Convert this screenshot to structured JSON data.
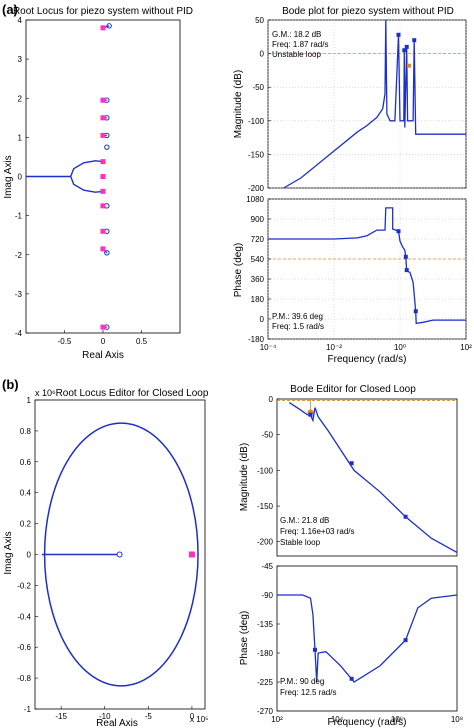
{
  "panel_labels": [
    "(a)",
    "(b)"
  ],
  "colors": {
    "locus": "#1d2fc9",
    "pole_marker": "#ff2fc0",
    "orange": "#e08a10",
    "grid": "#b8b8b8"
  },
  "chart_data": [
    {
      "id": "rl_a",
      "type": "scatter",
      "title": "Root Locus for piezo system without PID",
      "xlabel": "Real Axis",
      "ylabel": "Imag Axis",
      "xlim": [
        -1,
        1
      ],
      "ylim": [
        -4,
        4
      ],
      "xticks": [
        "-0.5",
        "0",
        "0.5"
      ],
      "yticks": [
        "-4",
        "-3",
        "-2",
        "-1",
        "0",
        "1",
        "2",
        "3",
        "4"
      ],
      "poles_y": [
        3.8,
        1.95,
        1.5,
        1.05,
        0.38,
        0,
        -0.38,
        -0.75,
        -1.4,
        -1.85,
        -3.85
      ],
      "zeros": [
        [
          0.08,
          3.85
        ],
        [
          0.05,
          1.95
        ],
        [
          0.05,
          1.5
        ],
        [
          0.05,
          1.05
        ],
        [
          0.05,
          0.75
        ],
        [
          0.05,
          -0.75
        ],
        [
          0.05,
          -1.4
        ],
        [
          0.05,
          -1.95
        ],
        [
          0.05,
          -3.85
        ]
      ],
      "branches": [
        {
          "name": "real-axis branch",
          "points": [
            [
              -1,
              0
            ],
            [
              -0.42,
              0
            ]
          ]
        },
        {
          "name": "upper loop",
          "points": [
            [
              -0.42,
              0
            ],
            [
              -0.38,
              0.2
            ],
            [
              -0.25,
              0.35
            ],
            [
              -0.1,
              0.4
            ],
            [
              0,
              0.38
            ]
          ]
        },
        {
          "name": "lower loop",
          "points": [
            [
              -0.42,
              0
            ],
            [
              -0.38,
              -0.2
            ],
            [
              -0.25,
              -0.35
            ],
            [
              -0.1,
              -0.4
            ],
            [
              0,
              -0.38
            ]
          ]
        },
        {
          "name": "pole-zero pairs",
          "segments": [
            [
              [
                0,
                3.8
              ],
              [
                0.08,
                3.85
              ]
            ],
            [
              [
                0,
                1.95
              ],
              [
                0.05,
                1.95
              ]
            ],
            [
              [
                0,
                1.5
              ],
              [
                0.05,
                1.5
              ]
            ],
            [
              [
                0,
                1.05
              ],
              [
                0.05,
                1.05
              ]
            ],
            [
              [
                0,
                -1.85
              ],
              [
                0.05,
                -1.95
              ]
            ],
            [
              [
                0,
                -3.85
              ],
              [
                0.05,
                -3.85
              ]
            ]
          ]
        }
      ],
      "grid": false
    },
    {
      "id": "bode_a",
      "type": "line",
      "title": "Bode plot for piezo system without PID",
      "xlabel": "Frequency (rad/s)",
      "xscale": "log",
      "xlim": [
        0.0001,
        100
      ],
      "xticks": [
        "10⁻⁴",
        "10⁻²",
        "10⁰",
        "10²"
      ],
      "magnitude": {
        "ylabel": "Magnitude (dB)",
        "ylim": [
          -200,
          50
        ],
        "yticks": [
          "50",
          "0",
          "-50",
          "-100",
          "-150",
          "-200"
        ],
        "annotation": [
          "G.M.: 18.2 dB",
          "Freq: 1.87 rad/s",
          "Unstable loop"
        ],
        "points": [
          [
            0.0003,
            -200
          ],
          [
            0.001,
            -185
          ],
          [
            0.01,
            -145
          ],
          [
            0.05,
            -117
          ],
          [
            0.1,
            -107
          ],
          [
            0.2,
            -95
          ],
          [
            0.3,
            -82
          ],
          [
            0.35,
            -60
          ],
          [
            0.37,
            50
          ],
          [
            0.4,
            -90
          ],
          [
            0.5,
            -100
          ],
          [
            0.7,
            -100
          ],
          [
            0.9,
            28
          ],
          [
            1.0,
            -100
          ],
          [
            1.3,
            -100
          ],
          [
            1.35,
            5
          ],
          [
            1.4,
            -110
          ],
          [
            1.6,
            10
          ],
          [
            1.7,
            -100
          ],
          [
            2.5,
            -100
          ],
          [
            2.7,
            20
          ],
          [
            3.0,
            -120
          ],
          [
            10,
            -120
          ],
          [
            100,
            -120
          ]
        ],
        "markers": [
          [
            0.9,
            28
          ],
          [
            1.35,
            5
          ],
          [
            1.6,
            10
          ],
          [
            2.7,
            20
          ],
          [
            1.87,
            -18
          ]
        ]
      },
      "phase": {
        "ylabel": "Phase (deg)",
        "ylim": [
          -180,
          1080
        ],
        "yticks": [
          "1080",
          "900",
          "720",
          "540",
          "360",
          "180",
          "0",
          "-180"
        ],
        "annotation": [
          "P.M.: 39.6 deg",
          "Freq: 1.5 rad/s"
        ],
        "points": [
          [
            0.0001,
            720
          ],
          [
            0.01,
            720
          ],
          [
            0.05,
            730
          ],
          [
            0.1,
            750
          ],
          [
            0.2,
            800
          ],
          [
            0.35,
            800
          ],
          [
            0.37,
            1000
          ],
          [
            0.6,
            1000
          ],
          [
            0.6,
            810
          ],
          [
            0.9,
            790
          ],
          [
            1.0,
            700
          ],
          [
            1.2,
            650
          ],
          [
            1.4,
            620
          ],
          [
            1.5,
            560
          ],
          [
            1.6,
            430
          ],
          [
            2.0,
            420
          ],
          [
            2.5,
            330
          ],
          [
            3.0,
            70
          ],
          [
            3.1,
            -40
          ],
          [
            5,
            -30
          ],
          [
            10,
            -10
          ],
          [
            100,
            -10
          ]
        ],
        "markers": [
          [
            0.9,
            790
          ],
          [
            1.5,
            560
          ],
          [
            1.6,
            440
          ],
          [
            3.0,
            70
          ]
        ]
      },
      "grid": true
    },
    {
      "id": "rl_b",
      "type": "scatter",
      "title": "Root Locus Editor for Closed Loop",
      "xlabel": "Real Axis",
      "ylabel": "Imag Axis",
      "y_multiplier": "x 10⁶",
      "x_multiplier": "x 10⁵",
      "xlim": [
        -18,
        1.5
      ],
      "ylim": [
        -1,
        1
      ],
      "xticks": [
        "-15",
        "-10",
        "-5",
        "0"
      ],
      "yticks": [
        "1",
        "0.8",
        "0.6",
        "0.4",
        "0.2",
        "0",
        "-0.2",
        "-0.4",
        "-0.6",
        "-0.8",
        "-1"
      ],
      "ellipse": {
        "center_x": -8.1,
        "semi_x": 8.8,
        "semi_y": 0.85
      },
      "branch": [
        [
          -17.2,
          0
        ],
        [
          -8.3,
          0
        ]
      ],
      "open_markers": [
        [
          -8.3,
          0
        ]
      ],
      "pole_markers": [
        [
          0,
          0
        ]
      ],
      "grid": false
    },
    {
      "id": "bode_b",
      "type": "line",
      "title": "Bode Editor for Closed Loop",
      "xlabel": "Frequency (rad/s)",
      "xscale": "log",
      "xlim": [
        10,
        100000000
      ],
      "xticks": [
        "10²",
        "10⁴",
        "10⁶",
        "10⁸"
      ],
      "magnitude": {
        "ylabel": "Magnitude (dB)",
        "ylim": [
          -220,
          0
        ],
        "yticks": [
          "0",
          "-50",
          "-100",
          "-150",
          "-200"
        ],
        "annotation": [
          "G.M.: 21.8 dB",
          "Freq: 1.16e+03 rad/s",
          "Stable loop"
        ],
        "points": [
          [
            30,
            -5
          ],
          [
            80,
            -15
          ],
          [
            150,
            -22
          ],
          [
            200,
            -23
          ],
          [
            250,
            -30
          ],
          [
            300,
            -12
          ],
          [
            400,
            -25
          ],
          [
            1000,
            -45
          ],
          [
            10000,
            -100
          ],
          [
            100000,
            -130
          ],
          [
            1000000,
            -165
          ],
          [
            10000000,
            -195
          ],
          [
            100000000,
            -215
          ]
        ],
        "markers": [
          [
            200,
            -22
          ],
          [
            8000,
            -90
          ],
          [
            1000000,
            -165
          ]
        ]
      },
      "phase": {
        "ylabel": "Phase (deg)",
        "ylim": [
          -270,
          -45
        ],
        "yticks": [
          "-45",
          "-90",
          "-135",
          "-180",
          "-225",
          "-270"
        ],
        "annotation": [
          "P.M.: 90 deg",
          "Freq: 12.5 rad/s"
        ],
        "points": [
          [
            10,
            -90
          ],
          [
            100,
            -90
          ],
          [
            200,
            -95
          ],
          [
            250,
            -120
          ],
          [
            300,
            -175
          ],
          [
            350,
            -225
          ],
          [
            400,
            -180
          ],
          [
            800,
            -178
          ],
          [
            3000,
            -200
          ],
          [
            10000,
            -225
          ],
          [
            100000,
            -200
          ],
          [
            1000000,
            -160
          ],
          [
            3000000,
            -110
          ],
          [
            10000000,
            -95
          ],
          [
            100000000,
            -90
          ]
        ],
        "markers": [
          [
            300,
            -175
          ],
          [
            8000,
            -220
          ],
          [
            1000000,
            -160
          ]
        ]
      },
      "grid": false
    }
  ]
}
